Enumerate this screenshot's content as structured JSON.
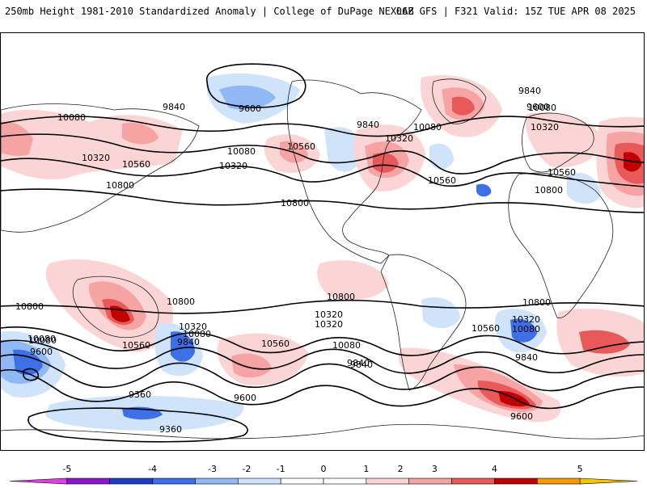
{
  "header": {
    "title_left": "250mb Height 1981-2010 Standardized Anomaly | College of DuPage NEXLAB",
    "title_right": "06Z GFS | F321 Valid: 15Z TUE APR 08 2025"
  },
  "colors": {
    "contour": "#000000",
    "coastline": "#222222",
    "anom_pos_1": "#fbd5d5",
    "anom_pos_2": "#f6a3a3",
    "anom_pos_3": "#e85a5a",
    "anom_pos_4": "#c00000",
    "anom_pos_5": "#f39b00",
    "anom_neg_1": "#cfe3fb",
    "anom_neg_2": "#8fb8f5",
    "anom_neg_3": "#3d6fe6",
    "anom_neg_4": "#1c3fbf",
    "anom_neg_5": "#8b18c8"
  },
  "contour_labels": [
    "10080",
    "9840",
    "9600",
    "10320",
    "10560",
    "10800",
    "9840",
    "10080",
    "10320",
    "10560",
    "10080",
    "10320",
    "10560",
    "10800",
    "9840",
    "9600",
    "10560",
    "10320",
    "10080",
    "10800",
    "10800",
    "10800",
    "10560",
    "10080",
    "10320",
    "9840",
    "10080",
    "9840",
    "10560",
    "10320",
    "10800",
    "10320",
    "10080",
    "10800",
    "10560",
    "9840",
    "9600",
    "9360",
    "9360",
    "9600",
    "10080",
    "10320",
    "9840",
    "9600",
    "10080"
  ],
  "colorbar": {
    "ticks": [
      "-5",
      "-4",
      "-3",
      "-2",
      "-1",
      "0",
      "1",
      "2",
      "3",
      "4",
      "5"
    ],
    "bins": [
      "#e040e0",
      "#8b18c8",
      "#1c3fbf",
      "#3d6fe6",
      "#8fb8f5",
      "#cfe3fb",
      "#ffffff",
      "#ffffff",
      "#fbd5d5",
      "#f6a3a3",
      "#e85a5a",
      "#c00000",
      "#f39b00",
      "#f7c400"
    ]
  }
}
